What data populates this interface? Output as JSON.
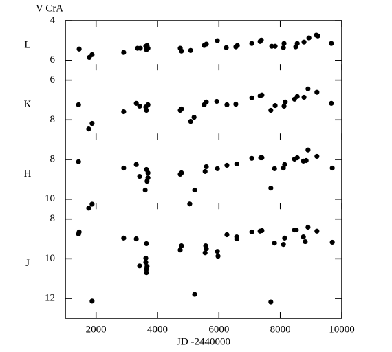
{
  "chart_data": [
    {
      "type": "scatter",
      "title": "V CrA",
      "ylabel": "L",
      "y_inverted": true,
      "color": "#000000",
      "xlim": [
        1000,
        10000
      ],
      "xticks": [
        2000,
        4000,
        6000,
        8000,
        10000
      ],
      "ylim": [
        4,
        6.5
      ],
      "yticks": [
        4,
        6
      ],
      "x": [
        1450,
        1780,
        1870,
        2900,
        3350,
        3440,
        3620,
        3640,
        3660,
        3690,
        4740,
        4780,
        5080,
        5520,
        5590,
        5950,
        6240,
        6550,
        6600,
        7070,
        7340,
        7380,
        7720,
        7830,
        8100,
        8120,
        8500,
        8550,
        8770,
        8930,
        9170,
        9220,
        9660
      ],
      "values": [
        5.43,
        5.85,
        5.71,
        5.6,
        5.39,
        5.39,
        5.29,
        5.46,
        5.25,
        5.39,
        5.39,
        5.53,
        5.5,
        5.25,
        5.18,
        5.01,
        5.36,
        5.32,
        5.25,
        5.15,
        5.05,
        4.98,
        5.29,
        5.29,
        5.36,
        5.15,
        5.32,
        5.15,
        5.08,
        4.87,
        4.73,
        4.77,
        5.15
      ]
    },
    {
      "type": "scatter",
      "ylabel": "K",
      "y_inverted": true,
      "color": "#000000",
      "xlim": [
        1000,
        10000
      ],
      "xticks": [
        2000,
        4000,
        6000,
        8000,
        10000
      ],
      "ylim": [
        5.5,
        9
      ],
      "yticks": [
        6,
        8
      ],
      "x": [
        1430,
        1760,
        1870,
        2900,
        3310,
        3420,
        3620,
        3640,
        3690,
        4740,
        4780,
        5080,
        5190,
        5520,
        5590,
        5930,
        6260,
        6550,
        7070,
        7340,
        7400,
        7690,
        7830,
        8120,
        8160,
        8460,
        8550,
        8770,
        8900,
        9190,
        9660
      ],
      "values": [
        7.24,
        8.46,
        8.18,
        7.59,
        7.17,
        7.31,
        7.35,
        7.52,
        7.24,
        7.52,
        7.45,
        8.08,
        7.87,
        7.24,
        7.1,
        7.07,
        7.24,
        7.21,
        6.89,
        6.79,
        6.75,
        7.52,
        7.28,
        7.31,
        7.1,
        6.96,
        6.82,
        6.86,
        6.44,
        6.61,
        7.17
      ]
    },
    {
      "type": "scatter",
      "ylabel": "H",
      "y_inverted": true,
      "color": "#000000",
      "xlim": [
        1000,
        10000
      ],
      "xticks": [
        2000,
        4000,
        6000,
        8000,
        10000
      ],
      "ylim": [
        7,
        10.5
      ],
      "yticks": [
        8,
        10
      ],
      "x": [
        1430,
        1760,
        1870,
        2900,
        3310,
        3420,
        3600,
        3640,
        3660,
        3690,
        3690,
        4740,
        4780,
        5050,
        5210,
        5550,
        5590,
        5950,
        6260,
        6580,
        7070,
        7360,
        7400,
        7690,
        7810,
        8100,
        8140,
        8460,
        8550,
        8750,
        8840,
        8900,
        9190,
        9690
      ],
      "values": [
        8.11,
        10.45,
        10.25,
        8.43,
        8.25,
        8.85,
        9.54,
        8.5,
        9.09,
        8.92,
        8.67,
        8.74,
        8.67,
        10.24,
        9.54,
        8.6,
        8.36,
        8.46,
        8.29,
        8.22,
        7.94,
        7.91,
        7.91,
        9.44,
        8.46,
        8.43,
        8.25,
        7.98,
        7.91,
        8.08,
        8.05,
        7.52,
        7.84,
        8.43
      ]
    },
    {
      "type": "scatter",
      "ylabel": "J",
      "xlabel": "JD -2440000",
      "y_inverted": true,
      "color": "#000000",
      "xlim": [
        1000,
        10000
      ],
      "xticks": [
        2000,
        4000,
        6000,
        8000,
        10000
      ],
      "ylim": [
        7.5,
        13
      ],
      "yticks": [
        8,
        10,
        12
      ],
      "x": [
        1430,
        1450,
        1870,
        2900,
        3310,
        3420,
        3640,
        3620,
        3620,
        3640,
        3640,
        3660,
        4740,
        4780,
        5210,
        5550,
        5570,
        5590,
        5950,
        5970,
        6260,
        6580,
        6580,
        7070,
        7340,
        7400,
        7690,
        7810,
        8100,
        8140,
        8460,
        8520,
        8750,
        8810,
        8900,
        9190,
        9690
      ],
      "values": [
        8.75,
        8.65,
        12.13,
        8.96,
        9.0,
        10.36,
        9.24,
        9.97,
        10.18,
        10.53,
        10.7,
        10.39,
        9.56,
        9.35,
        11.79,
        9.7,
        9.35,
        9.49,
        9.63,
        9.87,
        8.79,
        9.0,
        8.9,
        8.65,
        8.61,
        8.58,
        12.17,
        9.21,
        9.28,
        8.96,
        8.55,
        8.55,
        8.9,
        9.14,
        8.41,
        8.61,
        9.17
      ]
    }
  ]
}
